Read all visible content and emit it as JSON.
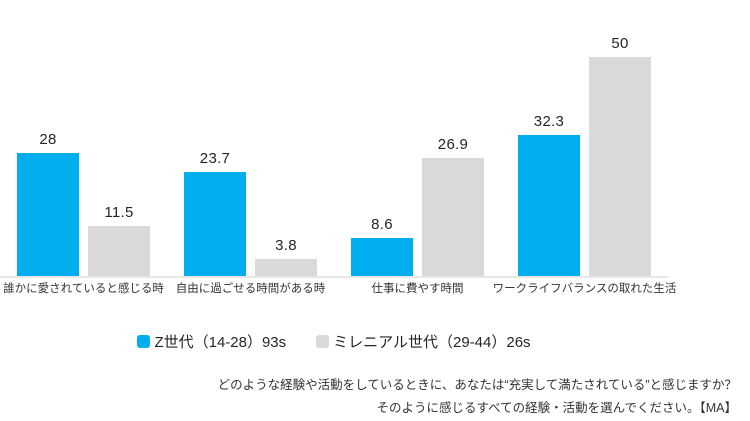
{
  "chart_data": {
    "type": "bar",
    "title": "",
    "categories": [
      "誰かに愛されていると感じる時",
      "自由に過ごせる時間がある時",
      "仕事に費やす時間",
      "ワークライフバランスの取れた生活"
    ],
    "series": [
      {
        "name": "Z世代（14-28）93s",
        "color": "#00AEEF",
        "values": [
          28,
          23.7,
          8.6,
          32.3
        ],
        "labels": [
          "28",
          "23.7",
          "8.6",
          "32.3"
        ]
      },
      {
        "name": "ミレニアル世代（29-44）26s",
        "color": "#D9D9D9",
        "values": [
          11.5,
          3.8,
          26.9,
          50
        ],
        "labels": [
          "11.5",
          "3.8",
          "26.9",
          "50"
        ]
      }
    ],
    "ylim": [
      0,
      50
    ],
    "grid": false,
    "axis_visible": false,
    "legend_position": "bottom",
    "value_labels_shown": true
  },
  "legend": {
    "items": [
      {
        "label": "Z世代（14-28）93s",
        "color": "#00AEEF"
      },
      {
        "label": "ミレニアル世代（29-44）26s",
        "color": "#D9D9D9"
      }
    ]
  },
  "footer": {
    "line1": "どのような経験や活動をしているときに、あなたは“充実して満たされている”と感じますか？",
    "line2": "そのように感じるすべての経験・活動を選んでください。【MA】"
  },
  "colors": {
    "gen_z_bar": "#00AEEF",
    "millennial_bar": "#D9D9D9",
    "axis_line": "#E7E7E7",
    "text": "#262626"
  }
}
